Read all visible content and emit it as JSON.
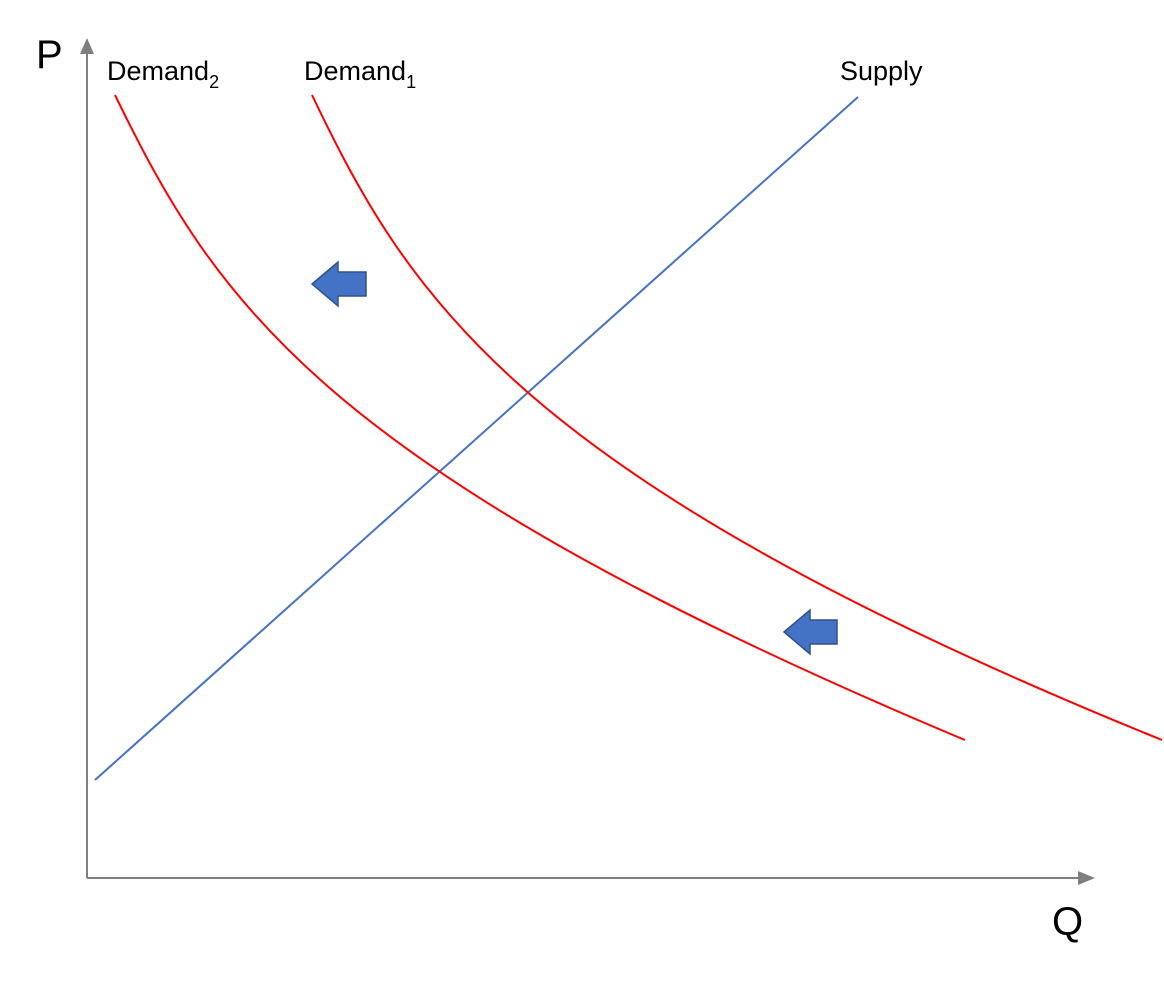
{
  "axes": {
    "y_label": "P",
    "x_label": "Q"
  },
  "curves": [
    {
      "label": "Demand",
      "subscript": "2"
    },
    {
      "label": "Demand",
      "subscript": "1"
    },
    {
      "label": "Supply"
    }
  ]
}
